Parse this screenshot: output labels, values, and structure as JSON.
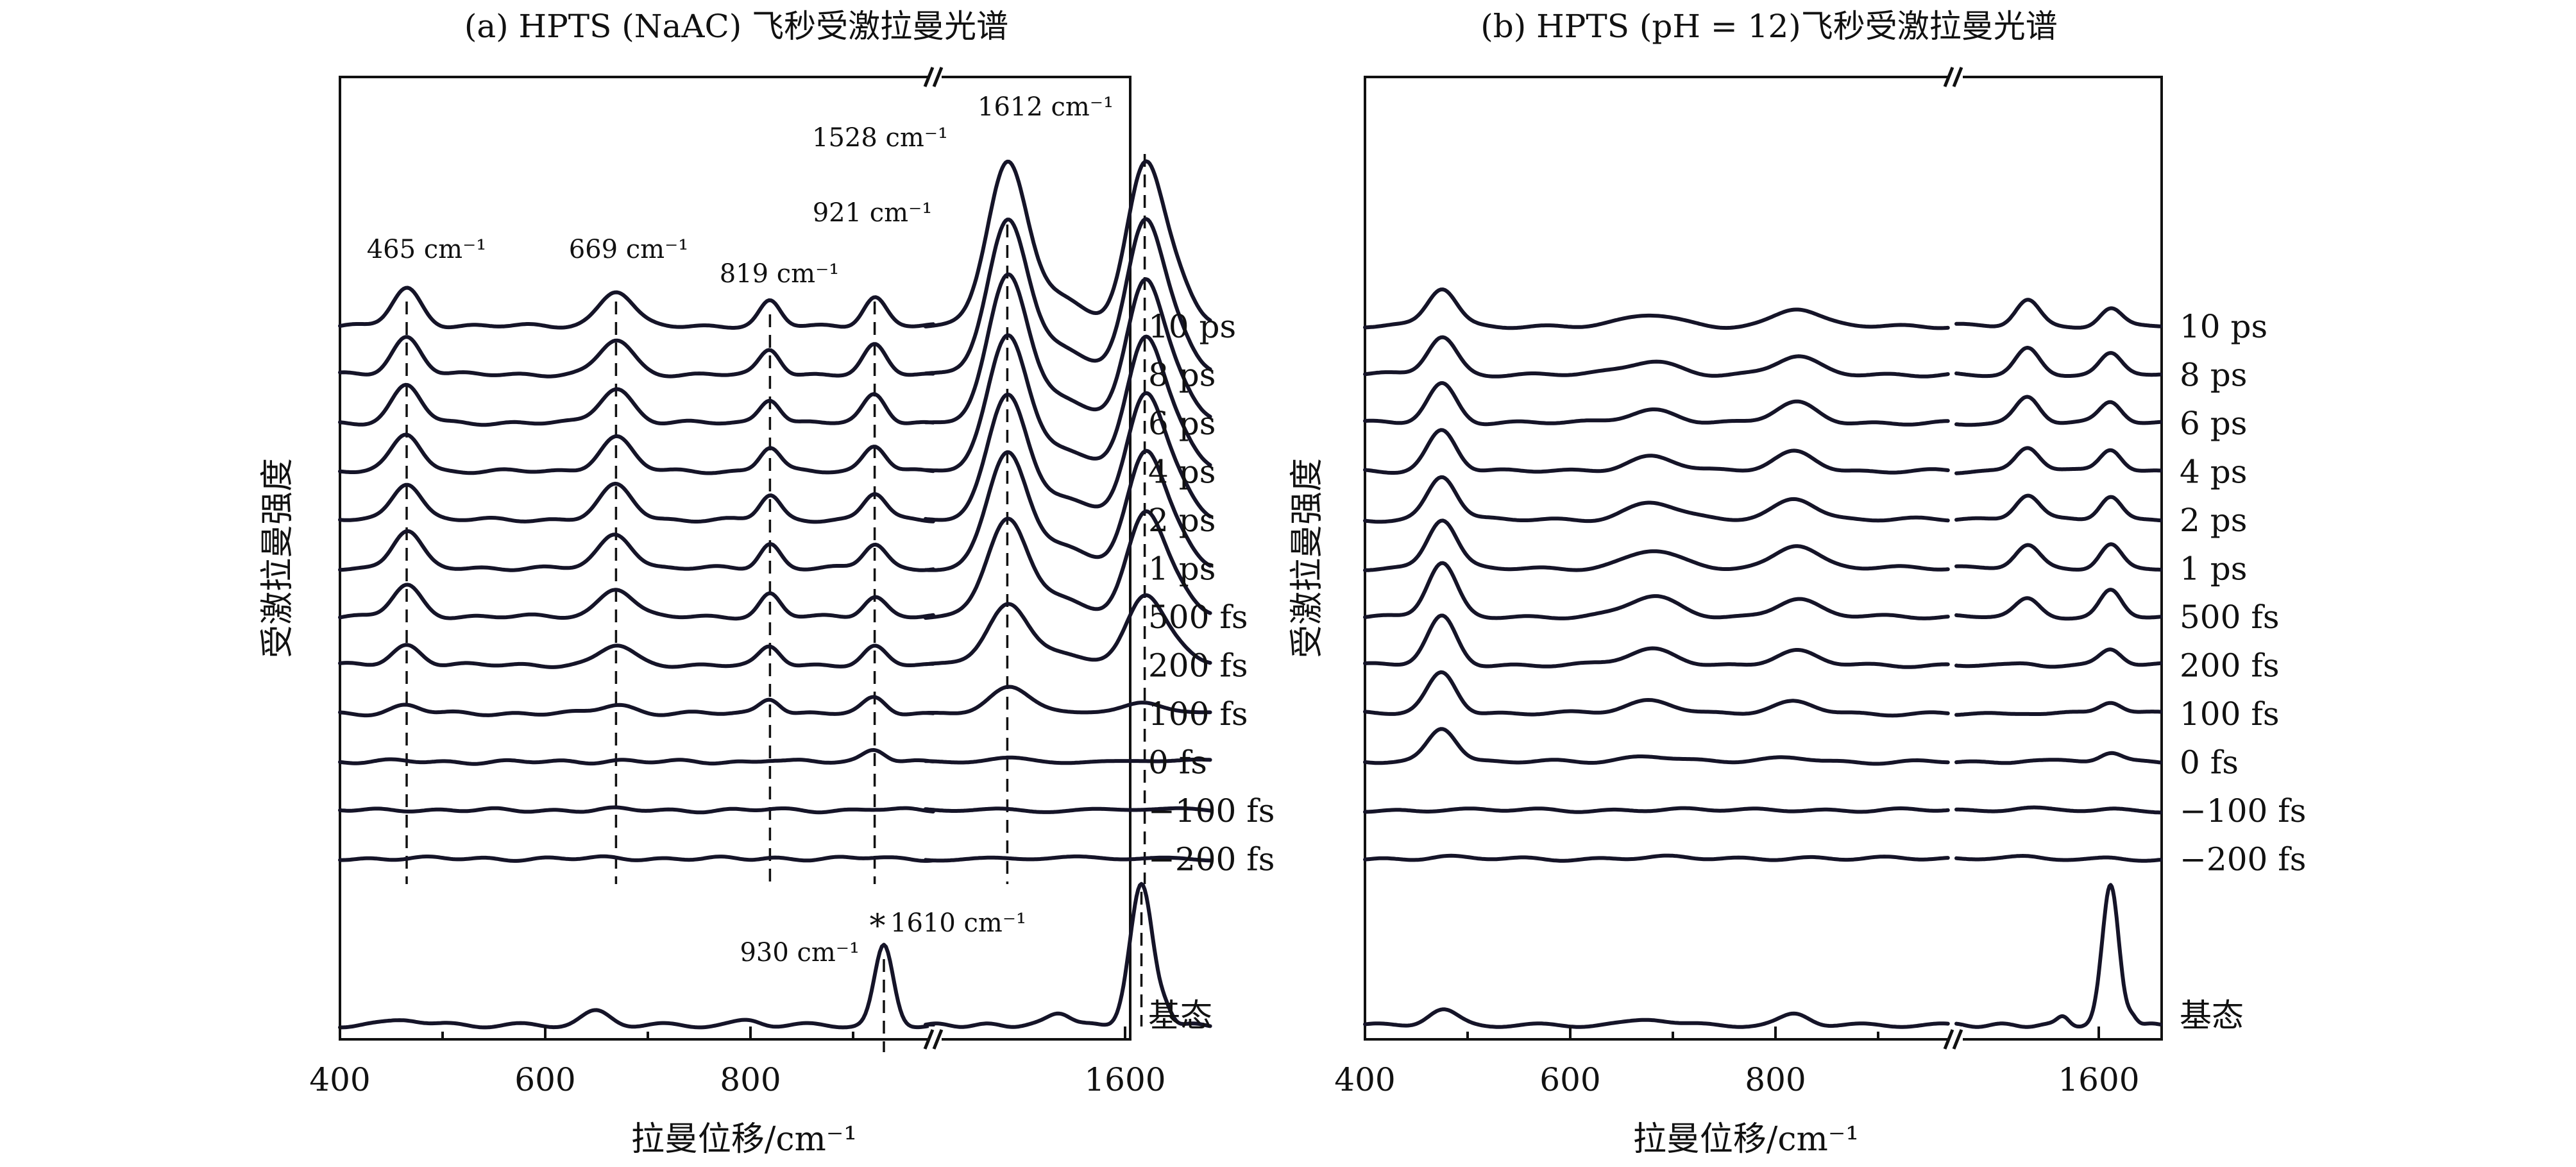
{
  "chart_data": [
    {
      "type": "line",
      "title": "(a) HPTS (NaAC) 飞秒受激拉曼光谱",
      "xlabel": "拉曼位移/cm⁻¹",
      "ylabel": "受激拉曼强度",
      "x_ticks": [
        "400",
        "600",
        "800",
        "1600"
      ],
      "axis_break": "x, between ~980 and ~1450 cm⁻¹",
      "series_labels": [
        "10 ps",
        "8 ps",
        "6 ps",
        "4 ps",
        "2 ps",
        "1 ps",
        "500 fs",
        "200 fs",
        "100 fs",
        "0 fs",
        "−100 fs",
        "−200 fs",
        "基态"
      ],
      "peak_annotations": [
        "465 cm⁻¹",
        "669 cm⁻¹",
        "819 cm⁻¹",
        "921 cm⁻¹",
        "1528 cm⁻¹",
        "1612 cm⁻¹"
      ],
      "ground_annotations": [
        "930 cm⁻¹",
        "*",
        "1610 cm⁻¹"
      ],
      "marked_positions_cm": [
        465,
        669,
        819,
        921,
        1528,
        1612
      ],
      "peak_amplitudes_relative": {
        "10 ps": [
          0.85,
          0.8,
          0.55,
          0.65,
          3.7,
          3.6
        ],
        "8 ps": [
          0.85,
          0.78,
          0.55,
          0.65,
          3.5,
          3.4
        ],
        "6 ps": [
          0.85,
          0.78,
          0.55,
          0.65,
          3.3,
          3.2
        ],
        "4 ps": [
          0.85,
          0.78,
          0.55,
          0.6,
          3.0,
          3.0
        ],
        "2 ps": [
          0.85,
          0.78,
          0.55,
          0.6,
          2.8,
          2.8
        ],
        "1 ps": [
          0.85,
          0.78,
          0.55,
          0.55,
          2.6,
          2.6
        ],
        "500 fs": [
          0.7,
          0.65,
          0.5,
          0.45,
          2.2,
          2.3
        ],
        "200 fs": [
          0.45,
          0.45,
          0.4,
          0.4,
          1.4,
          1.5
        ],
        "100 fs": [
          0.18,
          0.2,
          0.35,
          0.35,
          0.6,
          0.25
        ],
        "0 fs": [
          0.02,
          0.03,
          0.05,
          0.3,
          0.05,
          0.05
        ],
        "−100 fs": [
          0.02,
          0.02,
          0.02,
          0.03,
          0.02,
          0.02
        ],
        "−200 fs": [
          0.02,
          0.02,
          0.02,
          0.03,
          0.02,
          0.02
        ]
      },
      "ground_state_peaks": [
        {
          "position": 465,
          "amplitude": 0.15
        },
        {
          "position": 650,
          "amplitude": 0.3
        },
        {
          "position": 930,
          "amplitude": 1.8
        },
        {
          "position": 1560,
          "amplitude": 0.3
        },
        {
          "position": 1610,
          "amplitude": 3.2
        }
      ]
    },
    {
      "type": "line",
      "title": "(b) HPTS (pH = 12)飞秒受激拉曼光谱",
      "xlabel": "拉曼位移/cm⁻¹",
      "ylabel": "受激拉曼强度",
      "x_ticks": [
        "400",
        "600",
        "800",
        "1600"
      ],
      "axis_break": "x, between ~980 and ~1450 cm⁻¹",
      "series_labels": [
        "10 ps",
        "8 ps",
        "6 ps",
        "4 ps",
        "2 ps",
        "1 ps",
        "500 fs",
        "200 fs",
        "100 fs",
        "0 fs",
        "−100 fs",
        "−200 fs",
        "基态"
      ],
      "peak_positions_cm": [
        475,
        680,
        820,
        1540,
        1610
      ],
      "peak_amplitudes_relative": {
        "10 ps": [
          0.85,
          0.25,
          0.4,
          0.6,
          0.4
        ],
        "8 ps": [
          0.85,
          0.3,
          0.4,
          0.6,
          0.45
        ],
        "6 ps": [
          0.9,
          0.3,
          0.45,
          0.6,
          0.45
        ],
        "4 ps": [
          0.95,
          0.35,
          0.45,
          0.55,
          0.5
        ],
        "2 ps": [
          1.0,
          0.4,
          0.5,
          0.55,
          0.55
        ],
        "1 ps": [
          1.1,
          0.4,
          0.55,
          0.5,
          0.55
        ],
        "500 fs": [
          1.2,
          0.45,
          0.4,
          0.4,
          0.6
        ],
        "200 fs": [
          1.1,
          0.35,
          0.3,
          0.05,
          0.35
        ],
        "100 fs": [
          0.95,
          0.3,
          0.25,
          0.03,
          0.25
        ],
        "0 fs": [
          0.8,
          0.15,
          0.1,
          0.03,
          0.2
        ],
        "−100 fs": [
          0.02,
          0.02,
          0.02,
          0.02,
          0.02
        ],
        "−200 fs": [
          0.03,
          0.03,
          0.03,
          0.02,
          0.02
        ]
      },
      "ground_state_peaks": [
        {
          "position": 475,
          "amplitude": 0.35
        },
        {
          "position": 680,
          "amplitude": 0.15
        },
        {
          "position": 820,
          "amplitude": 0.25
        },
        {
          "position": 1570,
          "amplitude": 0.2
        },
        {
          "position": 1610,
          "amplitude": 3.2
        }
      ]
    }
  ]
}
